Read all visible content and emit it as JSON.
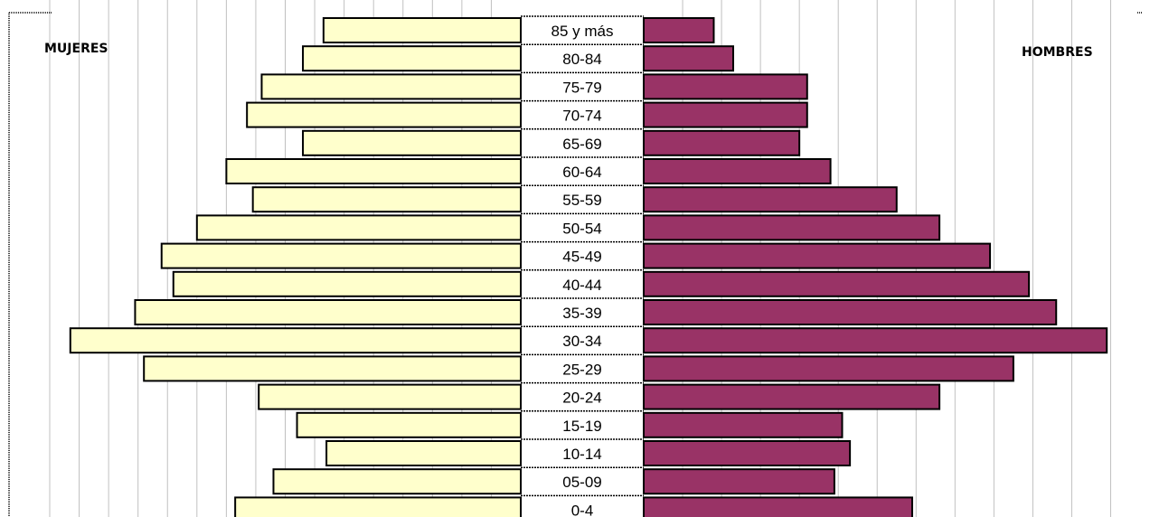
{
  "chart_data": {
    "type": "bar",
    "orientation": "horizontal",
    "subtype": "population-pyramid",
    "left_label": "MUJERES",
    "right_label": "HOMBRES",
    "categories": [
      "85 y más",
      "80-84",
      "75-79",
      "70-74",
      "65-69",
      "60-64",
      "55-59",
      "50-54",
      "45-49",
      "40-44",
      "35-39",
      "30-34",
      "25-29",
      "20-24",
      "15-19",
      "10-14",
      "05-09",
      "0-4"
    ],
    "series": [
      {
        "name": "MUJERES",
        "values": [
          6.7,
          7.4,
          8.8,
          9.3,
          7.4,
          10.0,
          9.1,
          11.0,
          12.2,
          11.8,
          13.1,
          15.3,
          12.8,
          8.9,
          7.6,
          6.6,
          8.4,
          9.7
        ]
      },
      {
        "name": "HOMBRES",
        "values": [
          1.8,
          2.3,
          4.2,
          4.2,
          4.0,
          4.8,
          6.5,
          7.6,
          8.9,
          9.9,
          10.6,
          11.9,
          9.5,
          7.6,
          5.1,
          5.3,
          4.9,
          6.9
        ]
      }
    ],
    "xlim_left": [
      0,
      16
    ],
    "xlim_right": [
      0,
      12.5
    ],
    "grid": true,
    "legend": "none",
    "colors": {
      "left_bar": "#ffffcc",
      "right_bar": "#993366",
      "bar_border": "#000000",
      "grid": "#c0c0c0"
    }
  }
}
